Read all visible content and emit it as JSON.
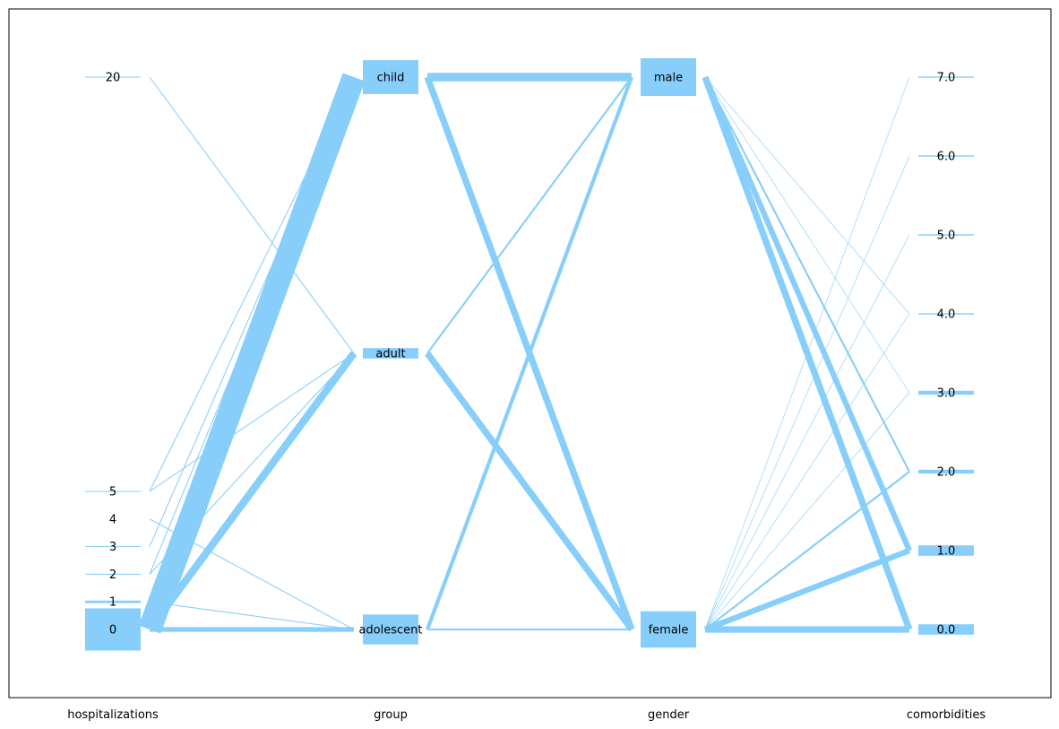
{
  "chart_data": {
    "type": "parallel_categories",
    "accent_color": "#87cefa",
    "axes": [
      {
        "name": "hospitalizations",
        "categories": [
          "20",
          "5",
          "4",
          "3",
          "2",
          "1",
          "0"
        ]
      },
      {
        "name": "group",
        "categories": [
          "child",
          "adult",
          "adolescent"
        ]
      },
      {
        "name": "gender",
        "categories": [
          "male",
          "female"
        ]
      },
      {
        "name": "comorbidities",
        "categories": [
          "7.0",
          "6.0",
          "5.0",
          "4.0",
          "3.0",
          "2.0",
          "1.0",
          "0.0"
        ]
      }
    ],
    "category_counts": {
      "hospitalizations": {
        "20": 1,
        "5": 1,
        "4": 0,
        "3": 1,
        "2": 1,
        "1": 3,
        "0": 50
      },
      "group": {
        "child": 26,
        "adult": 8,
        "adolescent": 23
      },
      "gender": {
        "male": 29,
        "female": 28
      },
      "comorbidities": {
        "7.0": 1,
        "6.0": 1,
        "5.0": 1,
        "4.0": 1,
        "3.0": 3,
        "2.0": 3,
        "1.0": 8,
        "0.0": 8
      }
    },
    "flows": [
      {
        "pair": [
          "hospitalizations",
          "group"
        ],
        "links": [
          {
            "from": "20",
            "to": "adult",
            "value": 1
          },
          {
            "from": "5",
            "to": "child",
            "value": 1
          },
          {
            "from": "5",
            "to": "adult",
            "value": 1
          },
          {
            "from": "4",
            "to": "adolescent",
            "value": 1
          },
          {
            "from": "3",
            "to": "child",
            "value": 1
          },
          {
            "from": "2",
            "to": "child",
            "value": 1
          },
          {
            "from": "2",
            "to": "adult",
            "value": 1
          },
          {
            "from": "1",
            "to": "adolescent",
            "value": 1
          },
          {
            "from": "0",
            "to": "child",
            "value": 25
          },
          {
            "from": "0",
            "to": "adult",
            "value": 8
          },
          {
            "from": "0",
            "to": "adolescent",
            "value": 5
          }
        ]
      },
      {
        "pair": [
          "group",
          "gender"
        ],
        "links": [
          {
            "from": "child",
            "to": "male",
            "value": 9
          },
          {
            "from": "child",
            "to": "female",
            "value": 7
          },
          {
            "from": "adult",
            "to": "male",
            "value": 2
          },
          {
            "from": "adult",
            "to": "female",
            "value": 7
          },
          {
            "from": "adolescent",
            "to": "male",
            "value": 4
          },
          {
            "from": "adolescent",
            "to": "female",
            "value": 2
          }
        ]
      },
      {
        "pair": [
          "gender",
          "comorbidities"
        ],
        "links": [
          {
            "from": "male",
            "to": "4.0",
            "value": 0.6
          },
          {
            "from": "male",
            "to": "3.0",
            "value": 0.6
          },
          {
            "from": "male",
            "to": "2.0",
            "value": 2
          },
          {
            "from": "male",
            "to": "1.0",
            "value": 6
          },
          {
            "from": "male",
            "to": "0.0",
            "value": 7
          },
          {
            "from": "female",
            "to": "7.0",
            "value": 0.6
          },
          {
            "from": "female",
            "to": "6.0",
            "value": 0.6
          },
          {
            "from": "female",
            "to": "5.0",
            "value": 0.6
          },
          {
            "from": "female",
            "to": "4.0",
            "value": 0.6
          },
          {
            "from": "female",
            "to": "3.0",
            "value": 0.6
          },
          {
            "from": "female",
            "to": "2.0",
            "value": 2
          },
          {
            "from": "female",
            "to": "1.0",
            "value": 6
          },
          {
            "from": "female",
            "to": "0.0",
            "value": 7
          }
        ]
      }
    ]
  }
}
